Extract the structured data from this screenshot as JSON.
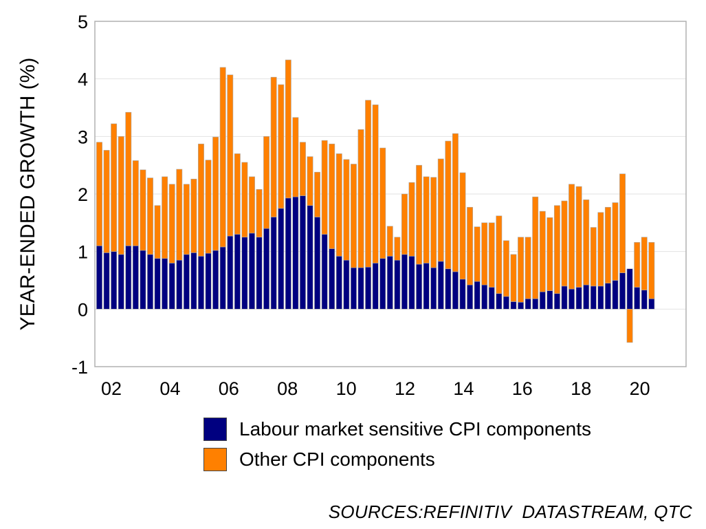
{
  "chart_data": {
    "type": "bar",
    "stacked": true,
    "ylabel": "YEAR-ENDED GROWTH (%)",
    "ylim": [
      -1,
      5
    ],
    "yticks": [
      "5",
      "4",
      "3",
      "2",
      "1",
      "0",
      "-1"
    ],
    "xtick_labels": [
      "02",
      "04",
      "06",
      "08",
      "10",
      "12",
      "14",
      "16",
      "18",
      "20"
    ],
    "grid": "horizontal",
    "legend_position": "bottom",
    "series": [
      {
        "name": "Labour market sensitive CPI components",
        "color": "#000080",
        "values": [
          1.1,
          0.98,
          1.0,
          0.95,
          1.1,
          1.1,
          1.02,
          0.95,
          0.88,
          0.88,
          0.8,
          0.85,
          0.95,
          0.98,
          0.92,
          0.97,
          1.02,
          1.08,
          1.27,
          1.3,
          1.25,
          1.32,
          1.25,
          1.4,
          1.6,
          1.75,
          1.93,
          1.95,
          1.97,
          1.8,
          1.6,
          1.3,
          1.05,
          0.92,
          0.85,
          0.72,
          0.72,
          0.73,
          0.8,
          0.88,
          0.92,
          0.85,
          0.95,
          0.92,
          0.78,
          0.8,
          0.72,
          0.83,
          0.7,
          0.65,
          0.52,
          0.42,
          0.48,
          0.42,
          0.38,
          0.27,
          0.22,
          0.13,
          0.12,
          0.18,
          0.18,
          0.3,
          0.32,
          0.27,
          0.4,
          0.35,
          0.38,
          0.42,
          0.4,
          0.4,
          0.45,
          0.5,
          0.63,
          0.7,
          0.38,
          0.33,
          0.18
        ]
      },
      {
        "name": "Other CPI components",
        "color": "#ff8000",
        "values": [
          1.8,
          1.78,
          2.22,
          2.05,
          2.32,
          1.48,
          1.4,
          1.33,
          0.92,
          1.42,
          1.37,
          1.58,
          1.22,
          1.28,
          1.95,
          1.62,
          1.97,
          3.12,
          2.8,
          1.4,
          1.3,
          0.98,
          0.83,
          1.6,
          2.43,
          2.15,
          2.4,
          1.38,
          0.93,
          0.85,
          0.78,
          1.63,
          1.82,
          1.78,
          1.75,
          1.8,
          2.4,
          2.9,
          2.75,
          1.92,
          0.52,
          0.4,
          1.05,
          1.28,
          1.72,
          1.5,
          1.57,
          1.78,
          2.22,
          2.4,
          1.85,
          1.35,
          0.95,
          1.08,
          1.12,
          1.35,
          0.97,
          0.82,
          1.13,
          1.07,
          1.77,
          1.4,
          1.27,
          1.53,
          1.48,
          1.82,
          1.75,
          1.48,
          1.02,
          1.28,
          1.32,
          1.35,
          1.72,
          -0.58,
          0.78,
          0.92,
          0.98
        ]
      }
    ]
  },
  "legend": {
    "item1": "Labour market sensitive CPI components",
    "item2": "Other CPI components"
  },
  "source": "SOURCES:REFINITIV  DATASTREAM, QTC"
}
